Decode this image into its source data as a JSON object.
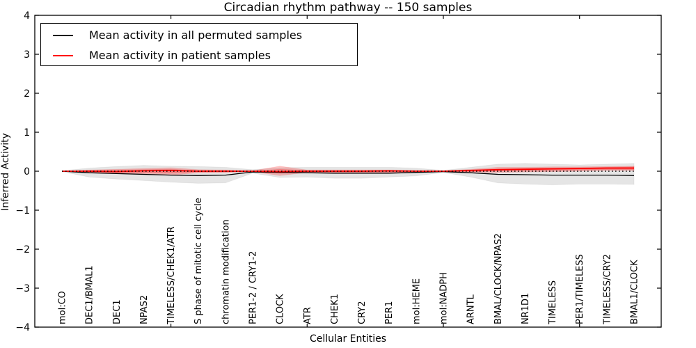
{
  "figure": {
    "title": "Circadian rhythm pathway -- 150 samples",
    "xlabel": "Cellular Entities",
    "ylabel": "Inferred Activity"
  },
  "legend": {
    "entries": [
      {
        "label": "Mean activity in all permuted samples",
        "color": "#000000"
      },
      {
        "label": "Mean activity in patient samples",
        "color": "#ff0000"
      }
    ]
  },
  "colors": {
    "axis": "#000000",
    "background": "#ffffff",
    "permuted_band": "#000000",
    "patient_band": "#ff0000"
  },
  "chart_data": {
    "type": "line",
    "title": "Circadian rhythm pathway -- 150 samples",
    "xlabel": "Cellular Entities",
    "ylabel": "Inferred Activity",
    "ylim": [
      -4,
      4
    ],
    "yticks": [
      4,
      3,
      2,
      1,
      0,
      -1,
      -2,
      -3,
      -4
    ],
    "yticklabels": [
      "4",
      "3",
      "2",
      "1",
      "0",
      "−1",
      "−2",
      "−3",
      "−4"
    ],
    "grid": false,
    "legend_position": "upper left",
    "xtick_marks_at": [
      4,
      9,
      14,
      19
    ],
    "categories": [
      "mol:CO",
      "DEC1/BMAL1",
      "DEC1",
      "NPAS2",
      "TIMELESS/CHEK1/ATR",
      "S phase of mitotic cell cycle",
      "chromatin modification",
      "PER1-2 / CRY1-2",
      "CLOCK",
      "ATR",
      "CHEK1",
      "CRY2",
      "PER1",
      "mol:HEME",
      "mol:NADPH",
      "ARNTL",
      "BMAL/CLOCK/NPAS2",
      "NR1D1",
      "TIMELESS",
      "PER1/TIMELESS",
      "TIMELESS/CRY2",
      "BMAL1/CLOCK"
    ],
    "series": [
      {
        "name": "Mean activity in all permuted samples",
        "color": "#000000",
        "style": "solid",
        "width": 1.3,
        "values": [
          0.0,
          -0.04,
          -0.06,
          -0.08,
          -0.1,
          -0.11,
          -0.1,
          -0.02,
          -0.03,
          -0.04,
          -0.05,
          -0.05,
          -0.05,
          -0.03,
          -0.01,
          -0.04,
          -0.08,
          -0.09,
          -0.1,
          -0.1,
          -0.1,
          -0.11
        ]
      },
      {
        "name": "Mean activity in patient samples",
        "color": "#ff0000",
        "style": "solid",
        "width": 1.8,
        "values": [
          0.0,
          0.0,
          -0.01,
          0.01,
          0.02,
          0.0,
          0.0,
          0.0,
          -0.01,
          0.0,
          0.0,
          0.0,
          0.01,
          0.0,
          0.0,
          0.02,
          0.04,
          0.05,
          0.06,
          0.07,
          0.08,
          0.08
        ]
      },
      {
        "name": "zero-reference",
        "color": "#000000",
        "style": "dotted",
        "width": 1.6,
        "values": [
          0,
          0,
          0,
          0,
          0,
          0,
          0,
          0,
          0,
          0,
          0,
          0,
          0,
          0,
          0,
          0,
          0,
          0,
          0,
          0,
          0,
          0
        ]
      }
    ],
    "bands": [
      {
        "name": "permuted-std-band",
        "color": "#000000",
        "alpha": 0.1,
        "top": [
          0.01,
          0.08,
          0.12,
          0.15,
          0.13,
          0.12,
          0.1,
          0.04,
          0.09,
          0.1,
          0.1,
          0.1,
          0.1,
          0.08,
          0.02,
          0.1,
          0.18,
          0.2,
          0.18,
          0.16,
          0.18,
          0.2
        ],
        "bottom": [
          -0.01,
          -0.15,
          -0.2,
          -0.24,
          -0.28,
          -0.31,
          -0.3,
          -0.05,
          -0.16,
          -0.15,
          -0.18,
          -0.18,
          -0.15,
          -0.12,
          -0.03,
          -0.15,
          -0.3,
          -0.33,
          -0.35,
          -0.33,
          -0.33,
          -0.34
        ]
      },
      {
        "name": "patient-std-band-outer",
        "color": "#ff0000",
        "alpha": 0.22,
        "top": [
          0.0,
          0.03,
          0.05,
          0.07,
          0.09,
          0.04,
          0.03,
          0.01,
          0.13,
          0.03,
          0.03,
          0.03,
          0.03,
          0.02,
          0.01,
          0.05,
          0.1,
          0.1,
          0.11,
          0.11,
          0.12,
          0.13
        ],
        "bottom": [
          0.0,
          -0.03,
          -0.06,
          -0.08,
          -0.1,
          -0.04,
          -0.03,
          -0.01,
          -0.11,
          -0.03,
          -0.03,
          -0.03,
          -0.03,
          -0.02,
          -0.01,
          -0.02,
          -0.03,
          -0.02,
          -0.01,
          0.0,
          0.02,
          0.02
        ]
      },
      {
        "name": "patient-std-band-inner",
        "color": "#ff0000",
        "alpha": 0.25,
        "top": [
          0.0,
          0.02,
          0.03,
          0.04,
          0.05,
          0.02,
          0.02,
          0.0,
          0.05,
          0.02,
          0.02,
          0.02,
          0.02,
          0.01,
          0.0,
          0.03,
          0.06,
          0.07,
          0.08,
          0.09,
          0.1,
          0.11
        ],
        "bottom": [
          0.0,
          -0.02,
          -0.03,
          -0.04,
          -0.05,
          -0.02,
          -0.02,
          -0.01,
          -0.05,
          -0.02,
          -0.02,
          -0.02,
          -0.02,
          -0.01,
          -0.01,
          -0.01,
          0.0,
          0.01,
          0.02,
          0.03,
          0.04,
          0.04
        ]
      }
    ]
  }
}
